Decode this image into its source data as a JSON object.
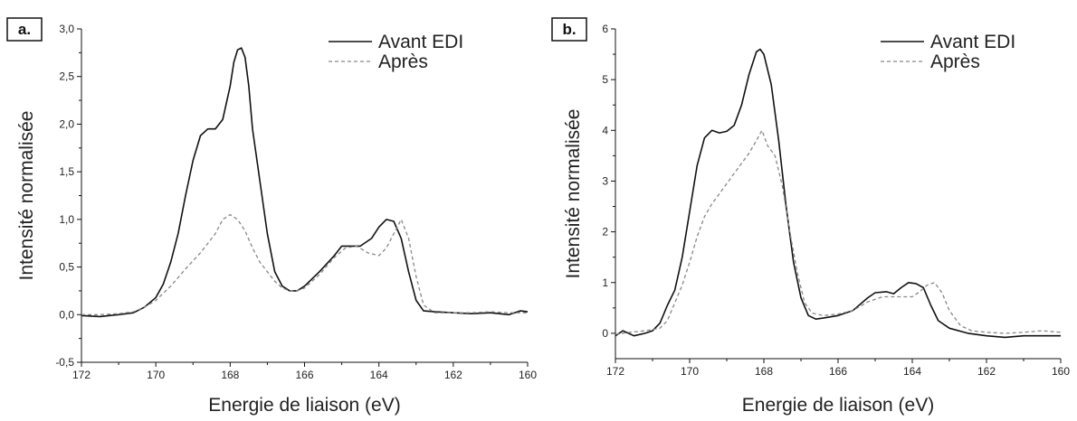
{
  "chart_data": [
    {
      "type": "line",
      "panel_label": "a.",
      "xlabel": "Energie de liaison (eV)",
      "ylabel": "Intensité normalisée",
      "xlim": [
        172,
        160
      ],
      "ylim": [
        -0.5,
        3.0
      ],
      "xticks": [
        172,
        170,
        168,
        166,
        164,
        162,
        160
      ],
      "xtick_labels": [
        "172",
        "170",
        "168",
        "166",
        "164",
        "162",
        "160"
      ],
      "yticks": [
        -0.5,
        0.0,
        0.5,
        1.0,
        1.5,
        2.0,
        2.5,
        3.0
      ],
      "ytick_labels": [
        "-0,5",
        "0,0",
        "0,5",
        "1,0",
        "1,5",
        "2,0",
        "2,5",
        "3,0"
      ],
      "legend": "top-right",
      "series": [
        {
          "name": "Avant EDI",
          "style": "solid",
          "color": "#111111",
          "points": [
            [
              172.0,
              -0.01
            ],
            [
              171.5,
              -0.02
            ],
            [
              171.0,
              0.0
            ],
            [
              170.6,
              0.02
            ],
            [
              170.3,
              0.08
            ],
            [
              170.0,
              0.18
            ],
            [
              169.8,
              0.32
            ],
            [
              169.6,
              0.55
            ],
            [
              169.4,
              0.85
            ],
            [
              169.2,
              1.25
            ],
            [
              169.0,
              1.62
            ],
            [
              168.8,
              1.88
            ],
            [
              168.6,
              1.95
            ],
            [
              168.4,
              1.95
            ],
            [
              168.2,
              2.05
            ],
            [
              168.0,
              2.4
            ],
            [
              167.9,
              2.65
            ],
            [
              167.8,
              2.78
            ],
            [
              167.7,
              2.8
            ],
            [
              167.6,
              2.7
            ],
            [
              167.5,
              2.4
            ],
            [
              167.4,
              1.95
            ],
            [
              167.2,
              1.4
            ],
            [
              167.0,
              0.85
            ],
            [
              166.8,
              0.45
            ],
            [
              166.6,
              0.3
            ],
            [
              166.4,
              0.25
            ],
            [
              166.2,
              0.25
            ],
            [
              166.0,
              0.3
            ],
            [
              165.6,
              0.45
            ],
            [
              165.2,
              0.62
            ],
            [
              165.0,
              0.72
            ],
            [
              164.8,
              0.72
            ],
            [
              164.5,
              0.72
            ],
            [
              164.2,
              0.8
            ],
            [
              164.0,
              0.92
            ],
            [
              163.8,
              1.0
            ],
            [
              163.6,
              0.98
            ],
            [
              163.4,
              0.8
            ],
            [
              163.2,
              0.45
            ],
            [
              163.0,
              0.15
            ],
            [
              162.8,
              0.04
            ],
            [
              162.5,
              0.03
            ],
            [
              162.0,
              0.02
            ],
            [
              161.5,
              0.01
            ],
            [
              161.0,
              0.02
            ],
            [
              160.5,
              0.0
            ],
            [
              160.2,
              0.04
            ],
            [
              160.0,
              0.03
            ]
          ]
        },
        {
          "name": "Après",
          "style": "dashed",
          "color": "#888888",
          "points": [
            [
              172.0,
              0.0
            ],
            [
              171.5,
              0.0
            ],
            [
              171.0,
              0.01
            ],
            [
              170.6,
              0.03
            ],
            [
              170.3,
              0.08
            ],
            [
              170.0,
              0.15
            ],
            [
              169.6,
              0.3
            ],
            [
              169.2,
              0.48
            ],
            [
              168.8,
              0.65
            ],
            [
              168.4,
              0.85
            ],
            [
              168.2,
              1.0
            ],
            [
              168.0,
              1.05
            ],
            [
              167.8,
              1.0
            ],
            [
              167.6,
              0.88
            ],
            [
              167.4,
              0.7
            ],
            [
              167.2,
              0.55
            ],
            [
              167.0,
              0.45
            ],
            [
              166.8,
              0.35
            ],
            [
              166.6,
              0.28
            ],
            [
              166.4,
              0.25
            ],
            [
              166.2,
              0.25
            ],
            [
              166.0,
              0.28
            ],
            [
              165.6,
              0.42
            ],
            [
              165.2,
              0.6
            ],
            [
              164.9,
              0.7
            ],
            [
              164.6,
              0.72
            ],
            [
              164.3,
              0.65
            ],
            [
              164.0,
              0.62
            ],
            [
              163.8,
              0.7
            ],
            [
              163.6,
              0.85
            ],
            [
              163.4,
              1.0
            ],
            [
              163.2,
              0.8
            ],
            [
              163.0,
              0.4
            ],
            [
              162.8,
              0.1
            ],
            [
              162.5,
              0.02
            ],
            [
              162.0,
              0.02
            ],
            [
              161.5,
              0.02
            ],
            [
              161.0,
              0.03
            ],
            [
              160.5,
              0.02
            ],
            [
              160.0,
              0.02
            ]
          ]
        }
      ]
    },
    {
      "type": "line",
      "panel_label": "b.",
      "xlabel": "Energie de liaison (eV)",
      "ylabel": "Intensité normalisée",
      "xlim": [
        172,
        160
      ],
      "ylim": [
        -0.5,
        6.0
      ],
      "xticks": [
        172,
        170,
        168,
        166,
        164,
        162,
        160
      ],
      "xtick_labels": [
        "172",
        "170",
        "168",
        "166",
        "164",
        "162",
        "160"
      ],
      "yticks": [
        0,
        1,
        2,
        3,
        4,
        5,
        6
      ],
      "ytick_labels": [
        "0",
        "1",
        "2",
        "3",
        "4",
        "5",
        "6"
      ],
      "legend": "top-right",
      "series": [
        {
          "name": "Avant EDI",
          "style": "solid",
          "color": "#111111",
          "points": [
            [
              172.0,
              -0.05
            ],
            [
              171.8,
              0.05
            ],
            [
              171.5,
              -0.05
            ],
            [
              171.2,
              0.0
            ],
            [
              171.0,
              0.05
            ],
            [
              170.8,
              0.2
            ],
            [
              170.6,
              0.55
            ],
            [
              170.4,
              0.85
            ],
            [
              170.2,
              1.5
            ],
            [
              170.0,
              2.4
            ],
            [
              169.8,
              3.3
            ],
            [
              169.6,
              3.85
            ],
            [
              169.4,
              4.0
            ],
            [
              169.2,
              3.95
            ],
            [
              169.0,
              3.98
            ],
            [
              168.8,
              4.1
            ],
            [
              168.6,
              4.5
            ],
            [
              168.4,
              5.1
            ],
            [
              168.2,
              5.55
            ],
            [
              168.1,
              5.6
            ],
            [
              168.0,
              5.5
            ],
            [
              167.8,
              4.9
            ],
            [
              167.6,
              3.8
            ],
            [
              167.4,
              2.5
            ],
            [
              167.2,
              1.4
            ],
            [
              167.0,
              0.7
            ],
            [
              166.8,
              0.35
            ],
            [
              166.6,
              0.28
            ],
            [
              166.4,
              0.3
            ],
            [
              166.0,
              0.35
            ],
            [
              165.6,
              0.45
            ],
            [
              165.2,
              0.7
            ],
            [
              165.0,
              0.8
            ],
            [
              164.7,
              0.82
            ],
            [
              164.5,
              0.78
            ],
            [
              164.3,
              0.9
            ],
            [
              164.1,
              1.0
            ],
            [
              163.9,
              0.98
            ],
            [
              163.7,
              0.9
            ],
            [
              163.5,
              0.55
            ],
            [
              163.3,
              0.25
            ],
            [
              163.0,
              0.1
            ],
            [
              162.5,
              0.0
            ],
            [
              162.0,
              -0.05
            ],
            [
              161.5,
              -0.08
            ],
            [
              161.0,
              -0.05
            ],
            [
              160.5,
              -0.05
            ],
            [
              160.0,
              -0.05
            ]
          ]
        },
        {
          "name": "Après",
          "style": "dashed",
          "color": "#888888",
          "points": [
            [
              172.0,
              -0.02
            ],
            [
              171.6,
              0.02
            ],
            [
              171.2,
              0.05
            ],
            [
              170.8,
              0.1
            ],
            [
              170.6,
              0.25
            ],
            [
              170.4,
              0.6
            ],
            [
              170.2,
              0.95
            ],
            [
              170.0,
              1.4
            ],
            [
              169.8,
              1.9
            ],
            [
              169.6,
              2.3
            ],
            [
              169.4,
              2.55
            ],
            [
              169.2,
              2.75
            ],
            [
              169.0,
              2.95
            ],
            [
              168.8,
              3.15
            ],
            [
              168.6,
              3.35
            ],
            [
              168.4,
              3.55
            ],
            [
              168.2,
              3.8
            ],
            [
              168.05,
              4.0
            ],
            [
              167.9,
              3.7
            ],
            [
              167.7,
              3.5
            ],
            [
              167.5,
              2.9
            ],
            [
              167.3,
              2.0
            ],
            [
              167.1,
              1.2
            ],
            [
              166.9,
              0.6
            ],
            [
              166.7,
              0.4
            ],
            [
              166.4,
              0.35
            ],
            [
              166.0,
              0.38
            ],
            [
              165.6,
              0.45
            ],
            [
              165.2,
              0.62
            ],
            [
              164.8,
              0.72
            ],
            [
              164.4,
              0.72
            ],
            [
              164.0,
              0.72
            ],
            [
              163.8,
              0.82
            ],
            [
              163.6,
              0.95
            ],
            [
              163.4,
              1.0
            ],
            [
              163.2,
              0.8
            ],
            [
              163.0,
              0.45
            ],
            [
              162.7,
              0.15
            ],
            [
              162.4,
              0.05
            ],
            [
              162.0,
              0.02
            ],
            [
              161.5,
              0.0
            ],
            [
              161.0,
              0.02
            ],
            [
              160.5,
              0.05
            ],
            [
              160.0,
              0.02
            ]
          ]
        }
      ]
    }
  ]
}
